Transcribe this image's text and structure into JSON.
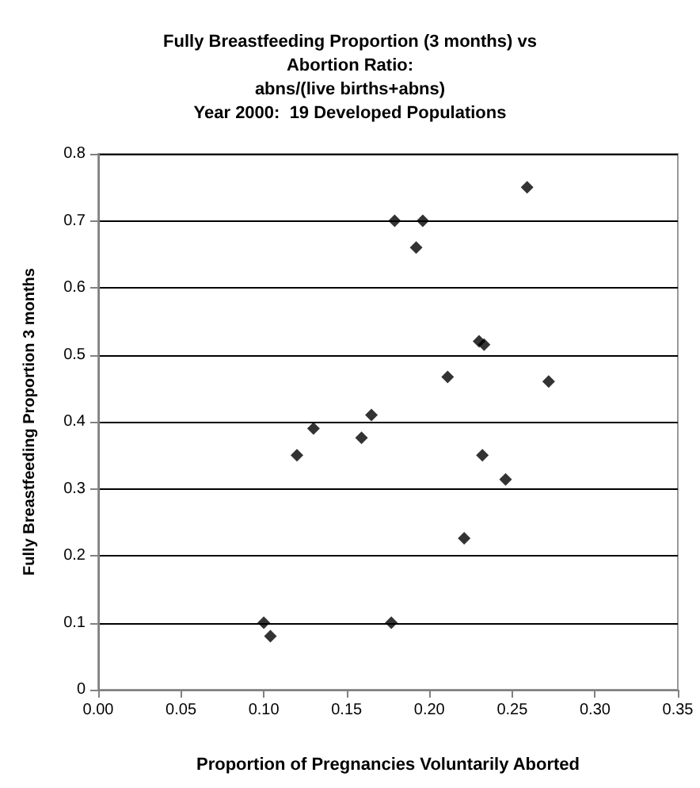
{
  "chart_data": {
    "type": "scatter",
    "title": "Fully Breastfeeding Proportion (3 months) vs\nAbortion Ratio:\nabns/(live births+abns)\nYear 2000:  19 Developed Populations",
    "xlabel": "Proportion of Pregnancies Voluntarily Aborted",
    "ylabel": "Fully Breastfeeding Proportion 3 months",
    "x": [
      0.1,
      0.104,
      0.177,
      0.221,
      0.192,
      0.179,
      0.196,
      0.259,
      0.12,
      0.13,
      0.159,
      0.165,
      0.211,
      0.23,
      0.233,
      0.272,
      0.232,
      0.246
    ],
    "values": [
      0.1,
      0.08,
      0.1,
      0.226,
      0.66,
      0.7,
      0.7,
      0.75,
      0.35,
      0.39,
      0.376,
      0.41,
      0.467,
      0.52,
      0.515,
      0.46,
      0.35,
      0.314
    ],
    "color": "#000000",
    "marker": "diamond",
    "grid": "y",
    "xlim": [
      0,
      0.35
    ],
    "xticks": [
      {
        "value": 0,
        "label": "0.00"
      },
      0.05,
      {
        "value": 0.1,
        "label": "0.10"
      },
      0.15,
      {
        "value": 0.2,
        "label": "0.20"
      },
      0.25,
      {
        "value": 0.3,
        "label": "0.30"
      },
      0.35
    ],
    "ylim": [
      0,
      0.8
    ],
    "yticks": [
      0,
      0.1,
      0.2,
      0.3,
      0.4,
      0.5,
      0.6,
      0.7,
      0.8
    ]
  }
}
